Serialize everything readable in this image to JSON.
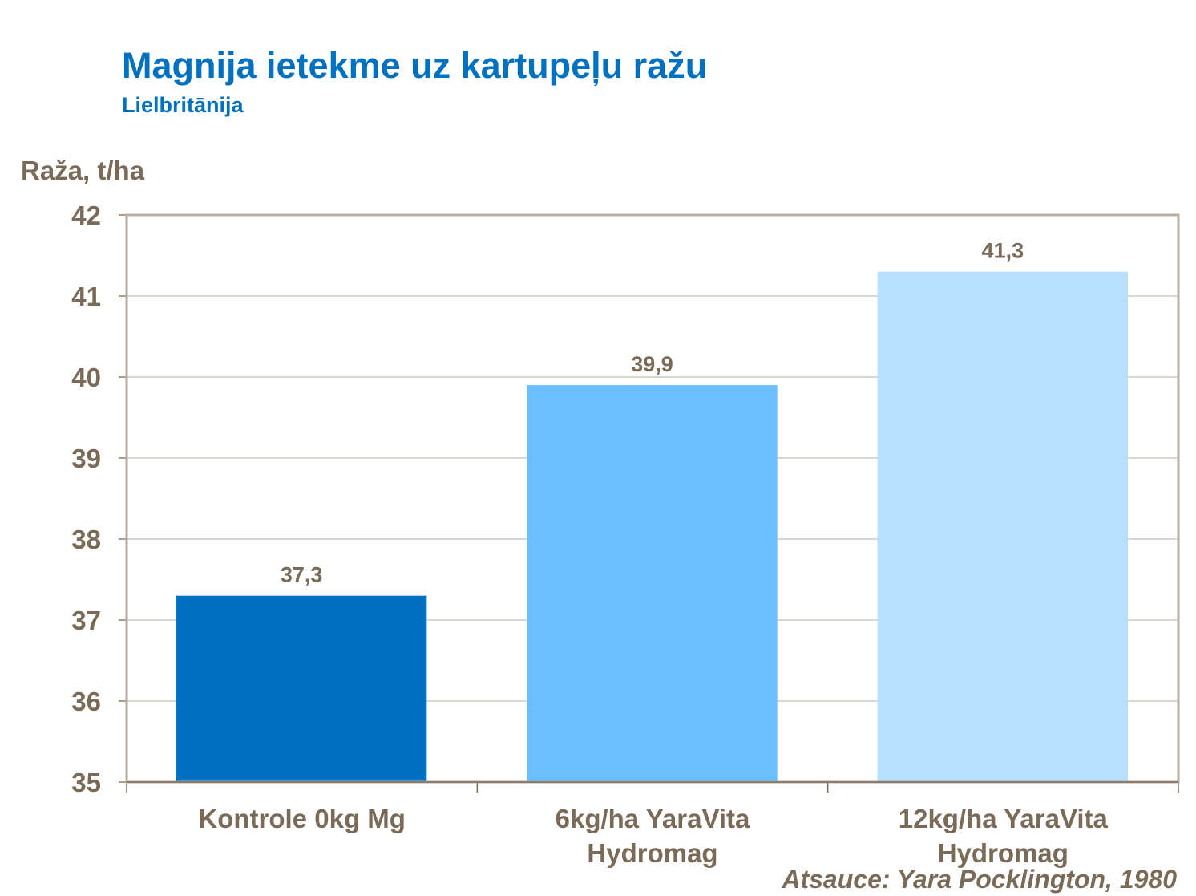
{
  "chart_data": {
    "type": "bar",
    "title": "Magnija ietekme uz kartupeļu ražu",
    "subtitle": "Lielbritānija",
    "ylabel": "Raža, t/ha",
    "xlabel": "",
    "ylim": [
      35,
      42
    ],
    "yticks": [
      "35",
      "36",
      "37",
      "38",
      "39",
      "40",
      "41",
      "42"
    ],
    "grid": true,
    "categories": [
      [
        "Kontrole 0kg Mg"
      ],
      [
        "6kg/ha YaraVita",
        "Hydromag"
      ],
      [
        "12kg/ha YaraVita",
        "Hydromag"
      ]
    ],
    "values": [
      37.3,
      39.9,
      41.3
    ],
    "data_labels": [
      "37,3",
      "39,9",
      "41,3"
    ],
    "colors": [
      "#0070c0",
      "#6bbfff",
      "#b8dffe"
    ],
    "source": "Atsauce: Yara Pocklington, 1980"
  }
}
